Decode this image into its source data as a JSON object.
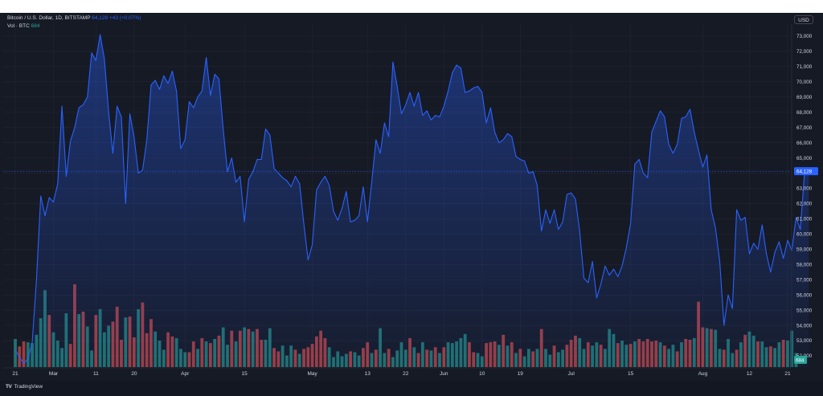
{
  "legend": {
    "symbol": "Bitcoin / U.S. Dollar, 1D, BITSTAMP",
    "price": "64,128",
    "change": "+43 (+0.07%)",
    "vol_label": "Vol · BTC",
    "vol_value": "684"
  },
  "currency": "USD",
  "price_label": "64,128",
  "volume_label": "684",
  "branding": "TradingView",
  "colors": {
    "line": "#2962ff",
    "up": "#26a69a",
    "down": "#ef5350",
    "bg": "#161a25",
    "grid": "#232632",
    "text": "#d1d4dc"
  },
  "chart_data": {
    "type": "area",
    "title": "Bitcoin / U.S. Dollar, 1D, BITSTAMP",
    "ylim": [
      51500,
      73600
    ],
    "y_ticks": [
      52000,
      53000,
      54000,
      55000,
      56000,
      57000,
      58000,
      59000,
      60000,
      61000,
      62000,
      63000,
      64000,
      65000,
      66000,
      67000,
      68000,
      69000,
      70000,
      71000,
      72000,
      73000
    ],
    "x_ticks": [
      {
        "label": "21",
        "day": 0
      },
      {
        "label": "Mar",
        "day": 9
      },
      {
        "label": "11",
        "day": 19
      },
      {
        "label": "20",
        "day": 28
      },
      {
        "label": "Apr",
        "day": 40
      },
      {
        "label": "15",
        "day": 54
      },
      {
        "label": "May",
        "day": 70
      },
      {
        "label": "13",
        "day": 83
      },
      {
        "label": "22",
        "day": 92
      },
      {
        "label": "Jun",
        "day": 101
      },
      {
        "label": "10",
        "day": 110
      },
      {
        "label": "19",
        "day": 119
      },
      {
        "label": "Jul",
        "day": 131
      },
      {
        "label": "15",
        "day": 145
      },
      {
        "label": "Aug",
        "day": 162
      },
      {
        "label": "12",
        "day": 173
      },
      {
        "label": "21",
        "day": 182
      }
    ],
    "series": [
      {
        "values": [
          52400,
          51900,
          51500,
          51800,
          52900,
          57000,
          62500,
          61200,
          62400,
          62100,
          63300,
          68400,
          63800,
          66100,
          67000,
          68300,
          68500,
          69000,
          71900,
          71400,
          73100,
          71500,
          68000,
          65300,
          68400,
          67700,
          62000,
          67900,
          66400,
          64000,
          64200,
          66200,
          69800,
          70100,
          69500,
          70400,
          69900,
          70700,
          69400,
          65600,
          66200,
          68700,
          68300,
          69000,
          69400,
          71600,
          69100,
          70500,
          70200,
          66900,
          64100,
          65000,
          63400,
          63800,
          60800,
          63600,
          64100,
          64900,
          64900,
          66900,
          66500,
          64300,
          64000,
          63700,
          63500,
          63100,
          63800,
          63300,
          60700,
          58300,
          59300,
          62900,
          63400,
          63800,
          63200,
          61500,
          60900,
          61700,
          62800,
          60800,
          60900,
          61200,
          63100,
          60800,
          63400,
          66200,
          65300,
          67300,
          66400,
          71300,
          69700,
          67900,
          68500,
          69300,
          68400,
          69300,
          67800,
          68100,
          67500,
          67800,
          67700,
          68400,
          69400,
          70600,
          71100,
          70900,
          69300,
          69400,
          69600,
          69700,
          69300,
          67300,
          68300,
          66700,
          66000,
          66200,
          66600,
          66400,
          65100,
          64900,
          64800,
          64000,
          64100,
          63200,
          60200,
          61600,
          60700,
          61600,
          60300,
          60800,
          62600,
          62700,
          62300,
          60200,
          57100,
          56800,
          58200,
          55800,
          56700,
          57900,
          57300,
          57700,
          57200,
          57900,
          59100,
          60700,
          64600,
          64900,
          64000,
          63700,
          66700,
          67400,
          68100,
          67700,
          65900,
          65300,
          65900,
          67600,
          67700,
          68200,
          66700,
          65500,
          64400,
          65200,
          61600,
          60400,
          58200,
          54000,
          56000,
          55100,
          61600,
          60900,
          61100,
          58700,
          59400,
          59000,
          60600,
          58700,
          57500,
          58800,
          59500,
          58400,
          59600,
          58900,
          61100,
          60300,
          64100,
          64128
        ]
      }
    ],
    "volume": [
      {
        "v": 0.34,
        "up": true
      },
      {
        "v": 0.25,
        "up": false
      },
      {
        "v": 0.31,
        "up": false
      },
      {
        "v": 0.3,
        "up": true
      },
      {
        "v": 0.29,
        "up": true
      },
      {
        "v": 0.39,
        "up": true
      },
      {
        "v": 0.59,
        "up": true
      },
      {
        "v": 0.93,
        "up": true
      },
      {
        "v": 0.63,
        "up": false
      },
      {
        "v": 0.42,
        "up": true
      },
      {
        "v": 0.32,
        "up": true
      },
      {
        "v": 0.23,
        "up": true
      },
      {
        "v": 0.65,
        "up": true
      },
      {
        "v": 0.28,
        "up": false
      },
      {
        "v": 1.0,
        "up": false
      },
      {
        "v": 0.64,
        "up": true
      },
      {
        "v": 0.67,
        "up": false
      },
      {
        "v": 0.49,
        "up": true
      },
      {
        "v": 0.2,
        "up": true
      },
      {
        "v": 0.63,
        "up": false
      },
      {
        "v": 0.7,
        "up": true
      },
      {
        "v": 0.42,
        "up": true
      },
      {
        "v": 0.5,
        "up": true
      },
      {
        "v": 0.55,
        "up": false
      },
      {
        "v": 0.73,
        "up": false
      },
      {
        "v": 0.33,
        "up": false
      },
      {
        "v": 0.6,
        "up": true
      },
      {
        "v": 0.61,
        "up": false
      },
      {
        "v": 0.36,
        "up": false
      },
      {
        "v": 0.7,
        "up": true
      },
      {
        "v": 0.78,
        "up": false
      },
      {
        "v": 0.41,
        "up": false
      },
      {
        "v": 0.58,
        "up": false
      },
      {
        "v": 0.43,
        "up": true
      },
      {
        "v": 0.32,
        "up": true
      },
      {
        "v": 0.21,
        "up": true
      },
      {
        "v": 0.42,
        "up": false
      },
      {
        "v": 0.37,
        "up": false
      },
      {
        "v": 0.35,
        "up": true
      },
      {
        "v": 0.22,
        "up": true
      },
      {
        "v": 0.18,
        "up": true
      },
      {
        "v": 0.18,
        "up": false
      },
      {
        "v": 0.31,
        "up": false
      },
      {
        "v": 0.22,
        "up": true
      },
      {
        "v": 0.35,
        "up": false
      },
      {
        "v": 0.31,
        "up": true
      },
      {
        "v": 0.29,
        "up": false
      },
      {
        "v": 0.34,
        "up": true
      },
      {
        "v": 0.38,
        "up": false
      },
      {
        "v": 0.48,
        "up": true
      },
      {
        "v": 0.27,
        "up": true
      },
      {
        "v": 0.44,
        "up": false
      },
      {
        "v": 0.31,
        "up": true
      },
      {
        "v": 0.44,
        "up": false
      },
      {
        "v": 0.48,
        "up": true
      },
      {
        "v": 0.46,
        "up": false
      },
      {
        "v": 0.43,
        "up": true
      },
      {
        "v": 0.46,
        "up": false
      },
      {
        "v": 0.33,
        "up": false
      },
      {
        "v": 0.33,
        "up": true
      },
      {
        "v": 0.47,
        "up": true
      },
      {
        "v": 0.23,
        "up": false
      },
      {
        "v": 0.19,
        "up": false
      },
      {
        "v": 0.26,
        "up": true
      },
      {
        "v": 0.14,
        "up": true
      },
      {
        "v": 0.26,
        "up": true
      },
      {
        "v": 0.21,
        "up": false
      },
      {
        "v": 0.16,
        "up": true
      },
      {
        "v": 0.22,
        "up": false
      },
      {
        "v": 0.24,
        "up": false
      },
      {
        "v": 0.28,
        "up": false
      },
      {
        "v": 0.37,
        "up": false
      },
      {
        "v": 0.44,
        "up": false
      },
      {
        "v": 0.35,
        "up": false
      },
      {
        "v": 0.24,
        "up": true
      },
      {
        "v": 0.12,
        "up": true
      },
      {
        "v": 0.19,
        "up": true
      },
      {
        "v": 0.13,
        "up": true
      },
      {
        "v": 0.16,
        "up": true
      },
      {
        "v": 0.19,
        "up": false
      },
      {
        "v": 0.18,
        "up": true
      },
      {
        "v": 0.14,
        "up": true
      },
      {
        "v": 0.23,
        "up": false
      },
      {
        "v": 0.3,
        "up": false
      },
      {
        "v": 0.17,
        "up": true
      },
      {
        "v": 0.21,
        "up": false
      },
      {
        "v": 0.47,
        "up": true
      },
      {
        "v": 0.17,
        "up": true
      },
      {
        "v": 0.22,
        "up": false
      },
      {
        "v": 0.12,
        "up": true
      },
      {
        "v": 0.2,
        "up": true
      },
      {
        "v": 0.3,
        "up": true
      },
      {
        "v": 0.21,
        "up": true
      },
      {
        "v": 0.35,
        "up": false
      },
      {
        "v": 0.24,
        "up": true
      },
      {
        "v": 0.17,
        "up": false
      },
      {
        "v": 0.3,
        "up": true
      },
      {
        "v": 0.21,
        "up": false
      },
      {
        "v": 0.2,
        "up": true
      },
      {
        "v": 0.24,
        "up": false
      },
      {
        "v": 0.17,
        "up": true
      },
      {
        "v": 0.24,
        "up": false
      },
      {
        "v": 0.3,
        "up": true
      },
      {
        "v": 0.29,
        "up": true
      },
      {
        "v": 0.31,
        "up": true
      },
      {
        "v": 0.35,
        "up": true
      },
      {
        "v": 0.4,
        "up": true
      },
      {
        "v": 0.3,
        "up": false
      },
      {
        "v": 0.18,
        "up": false
      },
      {
        "v": 0.17,
        "up": true
      },
      {
        "v": 0.13,
        "up": true
      },
      {
        "v": 0.29,
        "up": false
      },
      {
        "v": 0.3,
        "up": false
      },
      {
        "v": 0.31,
        "up": false
      },
      {
        "v": 0.27,
        "up": true
      },
      {
        "v": 0.39,
        "up": false
      },
      {
        "v": 0.26,
        "up": true
      },
      {
        "v": 0.3,
        "up": false
      },
      {
        "v": 0.17,
        "up": true
      },
      {
        "v": 0.22,
        "up": false
      },
      {
        "v": 0.13,
        "up": true
      },
      {
        "v": 0.22,
        "up": true
      },
      {
        "v": 0.19,
        "up": false
      },
      {
        "v": 0.22,
        "up": true
      },
      {
        "v": 0.46,
        "up": false
      },
      {
        "v": 0.22,
        "up": true
      },
      {
        "v": 0.15,
        "up": true
      },
      {
        "v": 0.26,
        "up": false
      },
      {
        "v": 0.18,
        "up": true
      },
      {
        "v": 0.21,
        "up": true
      },
      {
        "v": 0.27,
        "up": false
      },
      {
        "v": 0.33,
        "up": false
      },
      {
        "v": 0.38,
        "up": false
      },
      {
        "v": 0.35,
        "up": true
      },
      {
        "v": 0.22,
        "up": true
      },
      {
        "v": 0.3,
        "up": false
      },
      {
        "v": 0.26,
        "up": true
      },
      {
        "v": 0.3,
        "up": true
      },
      {
        "v": 0.27,
        "up": false
      },
      {
        "v": 0.22,
        "up": true
      },
      {
        "v": 0.46,
        "up": true
      },
      {
        "v": 0.4,
        "up": true
      },
      {
        "v": 0.29,
        "up": false
      },
      {
        "v": 0.32,
        "up": true
      },
      {
        "v": 0.27,
        "up": true
      },
      {
        "v": 0.28,
        "up": false
      },
      {
        "v": 0.31,
        "up": true
      },
      {
        "v": 0.34,
        "up": false
      },
      {
        "v": 0.31,
        "up": false
      },
      {
        "v": 0.34,
        "up": false
      },
      {
        "v": 0.31,
        "up": false
      },
      {
        "v": 0.32,
        "up": false
      },
      {
        "v": 0.3,
        "up": true
      },
      {
        "v": 0.26,
        "up": false
      },
      {
        "v": 0.22,
        "up": true
      },
      {
        "v": 0.27,
        "up": true
      },
      {
        "v": 0.19,
        "up": false
      },
      {
        "v": 0.3,
        "up": true
      },
      {
        "v": 0.34,
        "up": false
      },
      {
        "v": 0.33,
        "up": false
      },
      {
        "v": 0.35,
        "up": true
      },
      {
        "v": 0.79,
        "up": false
      },
      {
        "v": 0.48,
        "up": false
      },
      {
        "v": 0.47,
        "up": true
      },
      {
        "v": 0.46,
        "up": false
      },
      {
        "v": 0.45,
        "up": true
      },
      {
        "v": 0.22,
        "up": true
      },
      {
        "v": 0.21,
        "up": false
      },
      {
        "v": 0.34,
        "up": true
      },
      {
        "v": 0.17,
        "up": true
      },
      {
        "v": 0.21,
        "up": false
      },
      {
        "v": 0.3,
        "up": true
      },
      {
        "v": 0.39,
        "up": false
      },
      {
        "v": 0.43,
        "up": true
      },
      {
        "v": 0.38,
        "up": true
      },
      {
        "v": 0.31,
        "up": false
      },
      {
        "v": 0.31,
        "up": true
      },
      {
        "v": 0.24,
        "up": true
      },
      {
        "v": 0.25,
        "up": false
      },
      {
        "v": 0.23,
        "up": true
      },
      {
        "v": 0.3,
        "up": true
      },
      {
        "v": 0.33,
        "up": false
      },
      {
        "v": 0.32,
        "up": true
      },
      {
        "v": 0.44,
        "up": true
      },
      {
        "v": 0.17,
        "up": true
      }
    ]
  }
}
